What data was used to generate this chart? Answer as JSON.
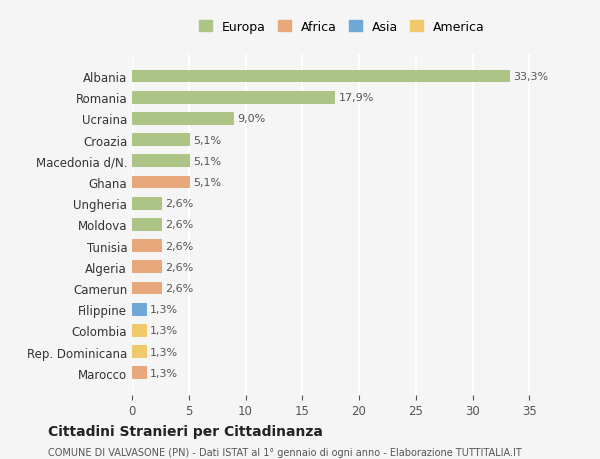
{
  "categories": [
    "Albania",
    "Romania",
    "Ucraina",
    "Croazia",
    "Macedonia d/N.",
    "Ghana",
    "Ungheria",
    "Moldova",
    "Tunisia",
    "Algeria",
    "Camerun",
    "Filippine",
    "Colombia",
    "Rep. Dominicana",
    "Marocco"
  ],
  "values": [
    33.3,
    17.9,
    9.0,
    5.1,
    5.1,
    5.1,
    2.6,
    2.6,
    2.6,
    2.6,
    2.6,
    1.3,
    1.3,
    1.3,
    1.3
  ],
  "labels": [
    "33,3%",
    "17,9%",
    "9,0%",
    "5,1%",
    "5,1%",
    "5,1%",
    "2,6%",
    "2,6%",
    "2,6%",
    "2,6%",
    "2,6%",
    "1,3%",
    "1,3%",
    "1,3%",
    "1,3%"
  ],
  "continents": [
    "Europa",
    "Europa",
    "Europa",
    "Europa",
    "Europa",
    "Africa",
    "Europa",
    "Europa",
    "Africa",
    "Africa",
    "Africa",
    "Asia",
    "America",
    "America",
    "Africa"
  ],
  "colors": {
    "Europa": "#adc487",
    "Africa": "#e8a87c",
    "Asia": "#6fa8d6",
    "America": "#f0c96a"
  },
  "legend_order": [
    "Europa",
    "Africa",
    "Asia",
    "America"
  ],
  "background_color": "#f5f5f5",
  "title": "Cittadini Stranieri per Cittadinanza",
  "subtitle": "COMUNE DI VALVASONE (PN) - Dati ISTAT al 1° gennaio di ogni anno - Elaborazione TUTTITALIA.IT",
  "xlim": [
    0,
    37
  ],
  "xticks": [
    0,
    5,
    10,
    15,
    20,
    25,
    30,
    35
  ],
  "grid_color": "#ffffff",
  "bar_height": 0.6
}
